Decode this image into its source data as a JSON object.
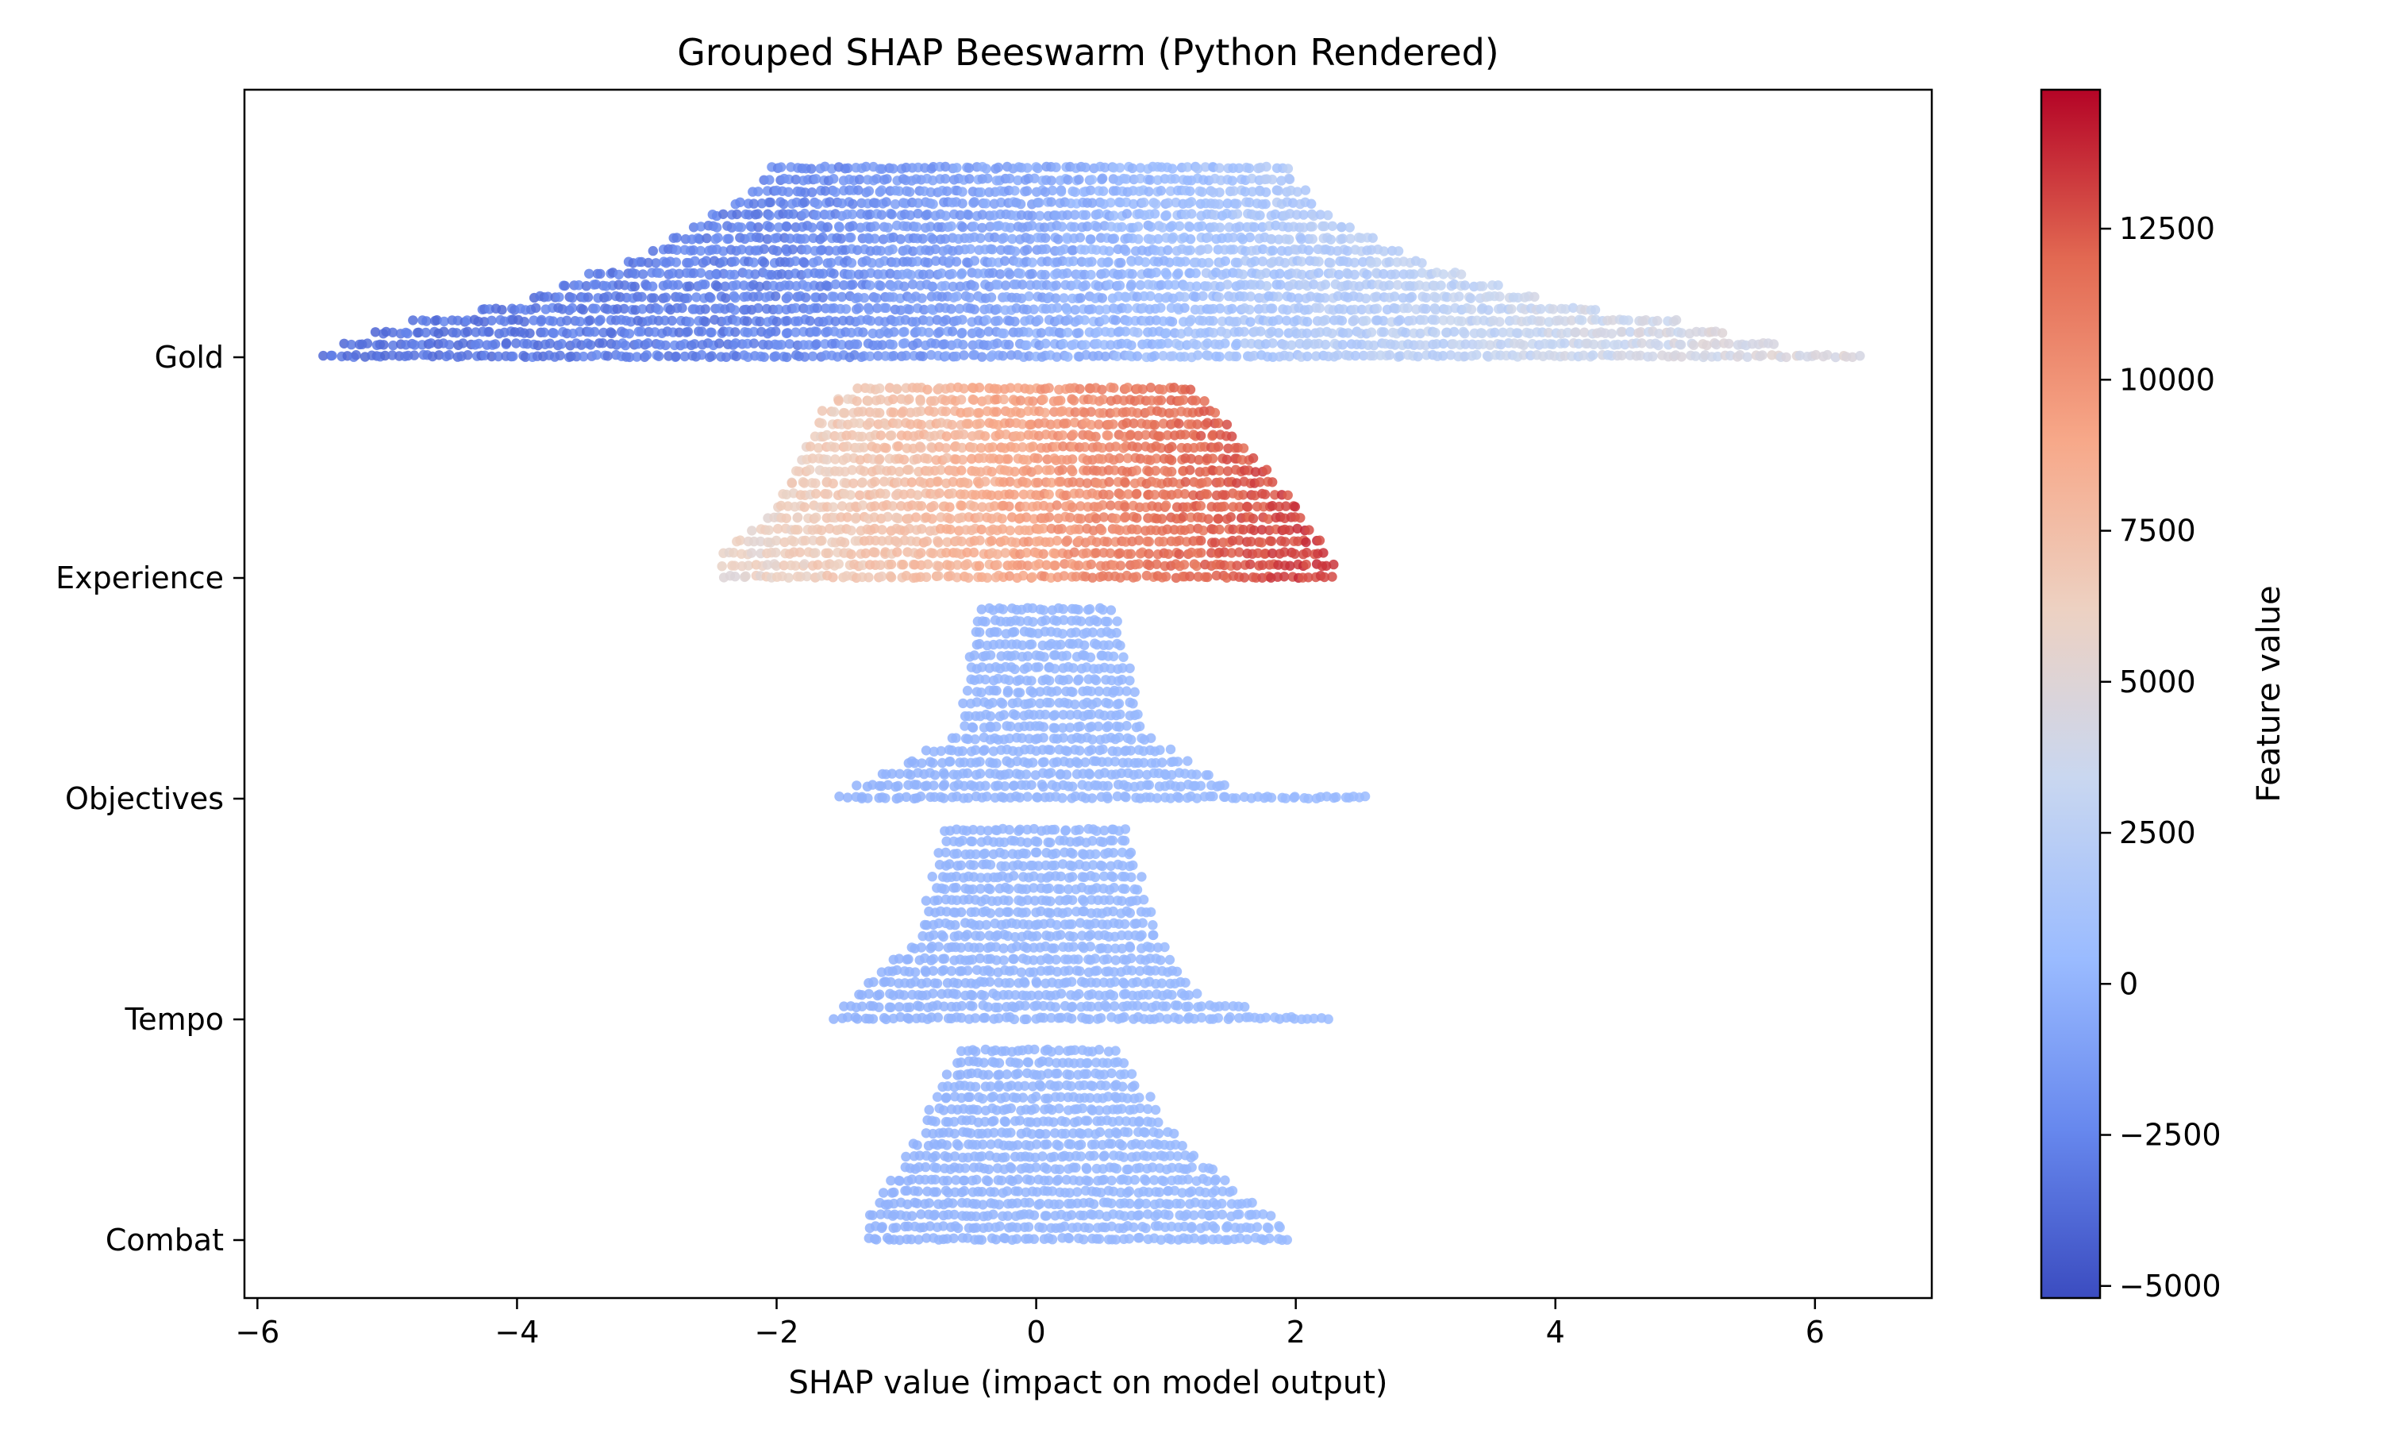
{
  "chart_data": {
    "type": "scatter",
    "subtype": "beeswarm",
    "title": "Grouped SHAP Beeswarm (Python Rendered)",
    "xlabel": "SHAP value (impact on model output)",
    "ylabel": "",
    "xlim": [
      -6.1,
      6.9
    ],
    "xticks": [
      -6,
      -4,
      -2,
      0,
      2,
      4,
      6
    ],
    "xtick_labels": [
      "−6",
      "−4",
      "−2",
      "0",
      "2",
      "4",
      "6"
    ],
    "categories": [
      "Gold",
      "Experience",
      "Objectives",
      "Tempo",
      "Combat"
    ],
    "grid": false,
    "colorbar": {
      "label": "Feature value",
      "min": -5200,
      "max": 14800,
      "ticks": [
        -5000,
        -2500,
        0,
        2500,
        5000,
        7500,
        10000,
        12500
      ],
      "tick_labels": [
        "−5000",
        "−2500",
        "0",
        "2500",
        "5000",
        "7500",
        "10000",
        "12500"
      ],
      "colormap": "coolwarm",
      "colors": [
        "#3b4cc0",
        "#6788ee",
        "#9abbff",
        "#c9d7f0",
        "#edd1c2",
        "#f7a889",
        "#e26952",
        "#b40426"
      ]
    },
    "series": [
      {
        "category": "Gold",
        "shap_min": -5.5,
        "shap_max": 6.35,
        "feature_value_range": [
          -4000,
          5000
        ],
        "profile": [
          [
            -5.5,
            0.05
          ],
          [
            -5.0,
            0.18
          ],
          [
            -4.0,
            0.3
          ],
          [
            -3.0,
            0.55
          ],
          [
            -2.2,
            0.85
          ],
          [
            -2.0,
            1.0
          ],
          [
            0.0,
            1.0
          ],
          [
            1.9,
            1.0
          ],
          [
            2.2,
            0.75
          ],
          [
            3.0,
            0.5
          ],
          [
            4.0,
            0.3
          ],
          [
            5.0,
            0.2
          ],
          [
            5.6,
            0.1
          ],
          [
            6.35,
            0.03
          ]
        ],
        "value_trend": [
          [
            -5.5,
            -3500
          ],
          [
            -2.0,
            -2500
          ],
          [
            0.0,
            -500
          ],
          [
            2.0,
            1800
          ],
          [
            4.0,
            3500
          ],
          [
            6.35,
            5000
          ]
        ]
      },
      {
        "category": "Experience",
        "shap_min": -2.4,
        "shap_max": 2.3,
        "feature_value_range": [
          5000,
          13500
        ],
        "profile": [
          [
            -2.4,
            0.15
          ],
          [
            -2.0,
            0.4
          ],
          [
            -1.6,
            0.9
          ],
          [
            -1.3,
            1.0
          ],
          [
            1.2,
            1.0
          ],
          [
            1.6,
            0.7
          ],
          [
            2.0,
            0.4
          ],
          [
            2.3,
            0.1
          ]
        ],
        "value_trend": [
          [
            -2.4,
            5500
          ],
          [
            -1.0,
            7500
          ],
          [
            0.0,
            9500
          ],
          [
            1.0,
            11500
          ],
          [
            2.3,
            13500
          ]
        ]
      },
      {
        "category": "Objectives",
        "shap_min": -1.5,
        "shap_max": 2.55,
        "feature_value_range": [
          0,
          800
        ],
        "profile": [
          [
            -1.5,
            0.05
          ],
          [
            -0.6,
            0.35
          ],
          [
            -0.45,
            1.0
          ],
          [
            0.6,
            1.0
          ],
          [
            0.85,
            0.35
          ],
          [
            1.5,
            0.08
          ],
          [
            2.55,
            0.03
          ]
        ],
        "value_trend": [
          [
            -1.5,
            0
          ],
          [
            2.55,
            500
          ]
        ]
      },
      {
        "category": "Tempo",
        "shap_min": -1.55,
        "shap_max": 2.25,
        "feature_value_range": [
          0,
          800
        ],
        "profile": [
          [
            -1.55,
            0.05
          ],
          [
            -0.9,
            0.45
          ],
          [
            -0.7,
            1.0
          ],
          [
            0.7,
            1.0
          ],
          [
            0.95,
            0.4
          ],
          [
            1.3,
            0.12
          ],
          [
            2.25,
            0.03
          ]
        ],
        "value_trend": [
          [
            -1.55,
            0
          ],
          [
            2.25,
            500
          ]
        ]
      },
      {
        "category": "Combat",
        "shap_min": -1.3,
        "shap_max": 1.95,
        "feature_value_range": [
          0,
          800
        ],
        "profile": [
          [
            -1.3,
            0.15
          ],
          [
            -0.9,
            0.55
          ],
          [
            -0.6,
            1.0
          ],
          [
            0.6,
            1.0
          ],
          [
            1.0,
            0.6
          ],
          [
            1.5,
            0.3
          ],
          [
            1.95,
            0.08
          ]
        ],
        "value_trend": [
          [
            -1.3,
            0
          ],
          [
            1.95,
            500
          ]
        ]
      }
    ]
  }
}
